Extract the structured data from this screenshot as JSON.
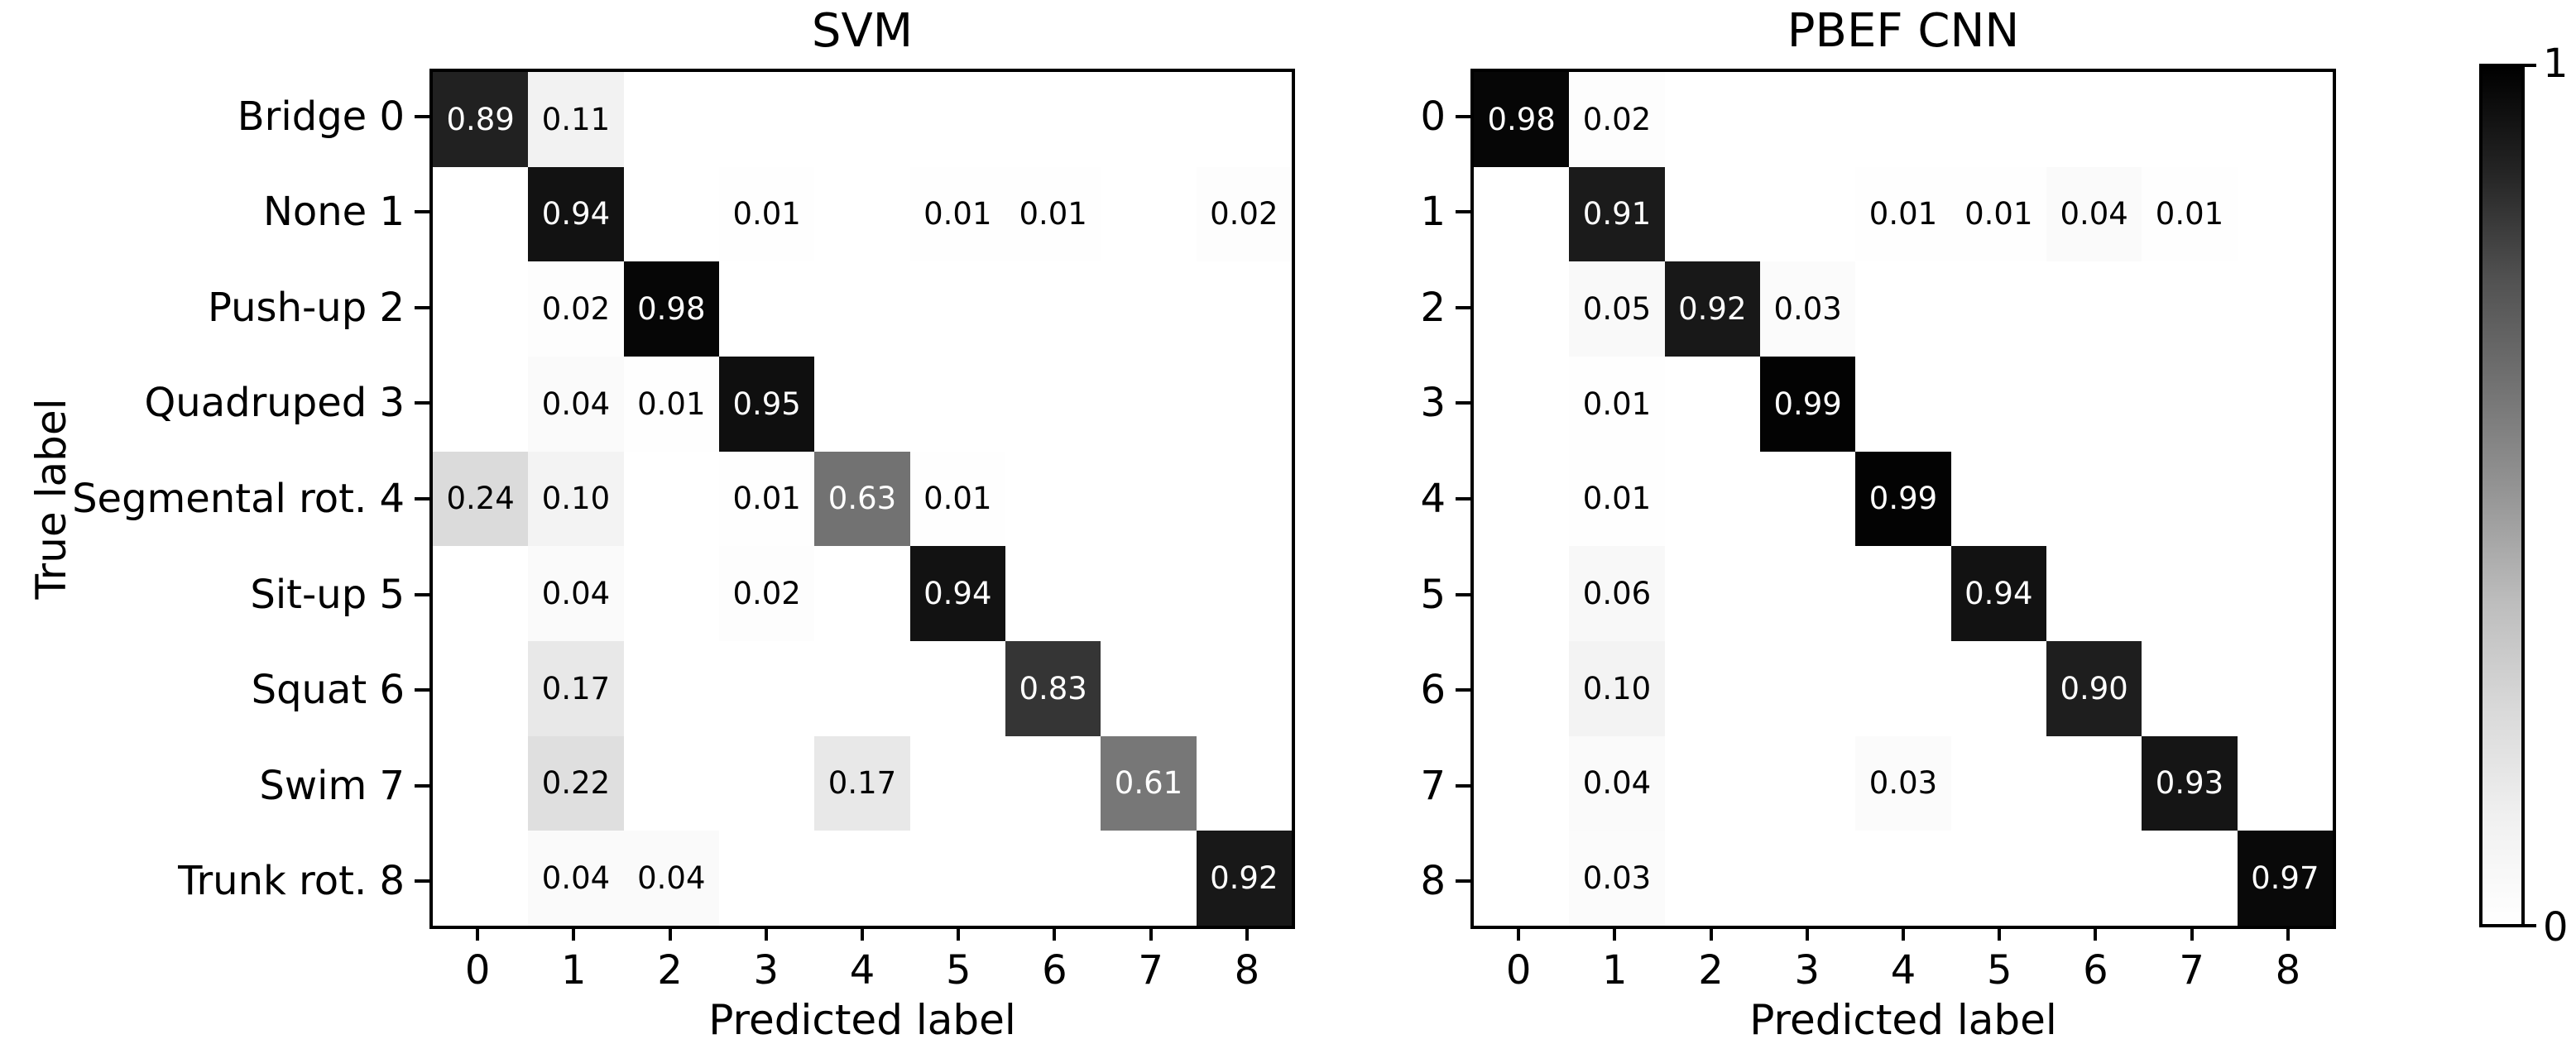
{
  "figure": {
    "background": "#ffffff",
    "colorbar": {
      "colormap": "Greys",
      "top_label": "1",
      "bottom_label": "0",
      "gradient_top_hex": "#000000",
      "gradient_bottom_hex": "#ffffff"
    }
  },
  "chart_data": [
    {
      "type": "heatmap",
      "title": "SVM",
      "xlabel": "Predicted label",
      "ylabel": "True label",
      "vmin": 0,
      "vmax": 1,
      "x_ticklabels": [
        "0",
        "1",
        "2",
        "3",
        "4",
        "5",
        "6",
        "7",
        "8"
      ],
      "y_ticklabels": [
        "Bridge 0",
        "None 1",
        "Push-up 2",
        "Quadruped 3",
        "Segmental rot. 4",
        "Sit-up 5",
        "Squat 6",
        "Swim 7",
        "Trunk rot. 8"
      ],
      "values": [
        [
          0.89,
          0.11,
          null,
          null,
          null,
          null,
          null,
          null,
          null
        ],
        [
          null,
          0.94,
          null,
          0.01,
          null,
          0.01,
          0.01,
          null,
          0.02
        ],
        [
          null,
          0.02,
          0.98,
          null,
          null,
          null,
          null,
          null,
          null
        ],
        [
          null,
          0.04,
          0.01,
          0.95,
          null,
          null,
          null,
          null,
          null
        ],
        [
          0.24,
          0.1,
          null,
          0.01,
          0.63,
          0.01,
          null,
          null,
          null
        ],
        [
          null,
          0.04,
          null,
          0.02,
          null,
          0.94,
          null,
          null,
          null
        ],
        [
          null,
          0.17,
          null,
          null,
          null,
          null,
          0.83,
          null,
          null
        ],
        [
          null,
          0.22,
          null,
          null,
          0.17,
          null,
          null,
          0.61,
          null
        ],
        [
          null,
          0.04,
          0.04,
          null,
          null,
          null,
          null,
          null,
          0.92
        ]
      ]
    },
    {
      "type": "heatmap",
      "title": "PBEF CNN",
      "xlabel": "Predicted label",
      "ylabel": "",
      "vmin": 0,
      "vmax": 1,
      "x_ticklabels": [
        "0",
        "1",
        "2",
        "3",
        "4",
        "5",
        "6",
        "7",
        "8"
      ],
      "y_ticklabels": [
        "0",
        "1",
        "2",
        "3",
        "4",
        "5",
        "6",
        "7",
        "8"
      ],
      "values": [
        [
          0.98,
          0.02,
          null,
          null,
          null,
          null,
          null,
          null,
          null
        ],
        [
          null,
          0.91,
          null,
          null,
          0.01,
          0.01,
          0.04,
          0.01,
          null
        ],
        [
          null,
          0.05,
          0.92,
          0.03,
          null,
          null,
          null,
          null,
          null
        ],
        [
          null,
          0.01,
          null,
          0.99,
          null,
          null,
          null,
          null,
          null
        ],
        [
          null,
          0.01,
          null,
          null,
          0.99,
          null,
          null,
          null,
          null
        ],
        [
          null,
          0.06,
          null,
          null,
          null,
          0.94,
          null,
          null,
          null
        ],
        [
          null,
          0.1,
          null,
          null,
          null,
          null,
          0.9,
          null,
          null
        ],
        [
          null,
          0.04,
          null,
          null,
          0.03,
          null,
          null,
          0.93,
          null
        ],
        [
          null,
          0.03,
          null,
          null,
          null,
          null,
          null,
          null,
          0.97
        ]
      ]
    }
  ]
}
